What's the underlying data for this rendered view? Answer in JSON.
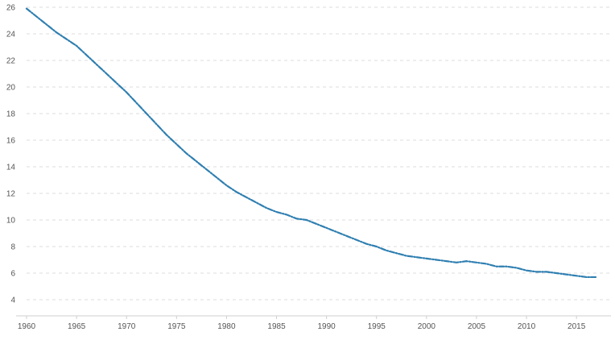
{
  "chart_data": {
    "type": "line",
    "title": "",
    "xlabel": "",
    "ylabel": "",
    "xlim": [
      1960,
      2017
    ],
    "ylim": [
      4,
      26
    ],
    "grid": true,
    "legend": "none",
    "x_ticks": [
      "1960",
      "1965",
      "1970",
      "1975",
      "1980",
      "1985",
      "1990",
      "1995",
      "2000",
      "2005",
      "2010",
      "2015"
    ],
    "y_ticks": [
      "4",
      "6",
      "8",
      "10",
      "12",
      "14",
      "16",
      "18",
      "20",
      "22",
      "24",
      "26"
    ],
    "colors": {
      "series": "#2f7fb1",
      "grid": "#dddddd",
      "axis": "#cfcfcf",
      "text": "#555555"
    },
    "series": [
      {
        "x": [
          1960,
          1961,
          1962,
          1963,
          1964,
          1965,
          1966,
          1967,
          1968,
          1969,
          1970,
          1971,
          1972,
          1973,
          1974,
          1975,
          1976,
          1977,
          1978,
          1979,
          1980,
          1981,
          1982,
          1983,
          1984,
          1985,
          1986,
          1987,
          1988,
          1989,
          1990,
          1991,
          1992,
          1993,
          1994,
          1995,
          1996,
          1997,
          1998,
          1999,
          2000,
          2001,
          2002,
          2003,
          2004,
          2005,
          2006,
          2007,
          2008,
          2009,
          2010,
          2011,
          2012,
          2013,
          2014,
          2015,
          2016,
          2017
        ],
        "values": [
          25.9,
          25.3,
          24.7,
          24.1,
          23.6,
          23.1,
          22.4,
          21.7,
          21.0,
          20.3,
          19.6,
          18.8,
          18.0,
          17.2,
          16.4,
          15.7,
          15.0,
          14.4,
          13.8,
          13.2,
          12.6,
          12.1,
          11.7,
          11.3,
          10.9,
          10.6,
          10.4,
          10.1,
          10.0,
          9.7,
          9.4,
          9.1,
          8.8,
          8.5,
          8.2,
          8.0,
          7.7,
          7.5,
          7.3,
          7.2,
          7.1,
          7.0,
          6.9,
          6.8,
          6.9,
          6.8,
          6.7,
          6.5,
          6.5,
          6.4,
          6.2,
          6.1,
          6.1,
          6.0,
          5.9,
          5.8,
          5.7,
          5.7
        ]
      }
    ]
  }
}
